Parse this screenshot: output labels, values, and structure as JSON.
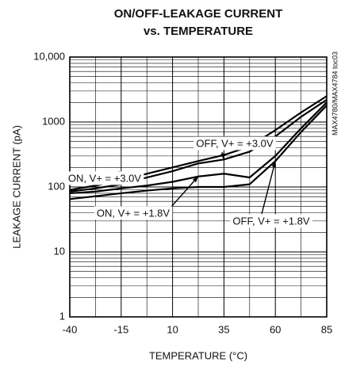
{
  "chart_data": {
    "type": "line",
    "title": [
      "ON/OFF-LEAKAGE CURRENT",
      "vs. TEMPERATURE"
    ],
    "side_note": "MAX4780/MAX4784 toc03",
    "x_label": "TEMPERATURE (°C)",
    "y_label": "LEAKAGE CURRENT (pA)",
    "x": [
      -40,
      -27.5,
      -15,
      -2.5,
      10,
      22.5,
      35,
      47.5,
      60,
      72.5,
      85
    ],
    "xlim": [
      -40,
      85
    ],
    "xticks": [
      -40,
      -15,
      10,
      35,
      60,
      85
    ],
    "ylim": [
      1,
      10000
    ],
    "yticks": [
      1,
      10,
      100,
      1000,
      {
        "value": 10000,
        "label": "10,000"
      }
    ],
    "log_y": true,
    "grid": true,
    "series": [
      {
        "name": "ON, V+ = +3.0V",
        "color": "#000000",
        "values": [
          90,
          105,
          125,
          160,
          200,
          250,
          310,
          420,
          750,
          1400,
          2500
        ]
      },
      {
        "name": "OFF, V+ = +3.0V",
        "color": "#000000",
        "values": [
          85,
          95,
          110,
          140,
          175,
          230,
          265,
          350,
          600,
          1200,
          2200
        ]
      },
      {
        "name": "ON, V+ = +1.8V",
        "color": "#000000",
        "values": [
          80,
          85,
          95,
          105,
          120,
          145,
          160,
          140,
          300,
          800,
          2000
        ]
      },
      {
        "name": "OFF, V+ = +1.8V",
        "color": "#000000",
        "values": [
          65,
          72,
          80,
          88,
          95,
          100,
          100,
          110,
          250,
          700,
          1800
        ]
      }
    ]
  }
}
